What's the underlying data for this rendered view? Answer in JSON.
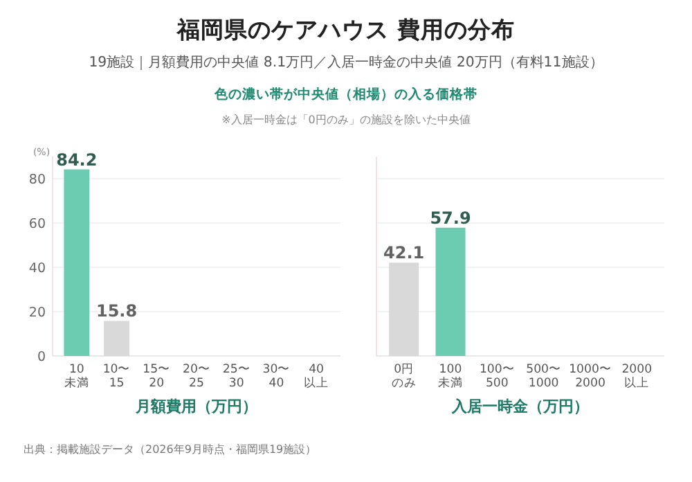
{
  "chart_data": [
    {
      "type": "bar",
      "title": "福岡県のケアハウス 費用の分布",
      "subtitle": "19施設｜月額費用の中央値 8.1万円／入居一時金の中央値 20万円（有料11施設）",
      "annotations": [
        "色の濃い帯が中央値（相場）の入る価格帯",
        "※入居一時金は「0円のみ」の施設を除いた中央値",
        "出典：掲載施設データ（2026年9月時点・福岡県19施設）"
      ],
      "ylabel": "(%)",
      "xlabel": "月額費用（万円）",
      "categories": [
        "10\n未満",
        "10〜\n15",
        "15〜\n20",
        "20〜\n25",
        "25〜\n30",
        "30〜\n40",
        "40\n以上"
      ],
      "values": [
        84.2,
        15.8,
        0,
        0,
        0,
        0,
        0
      ],
      "colors": [
        "#6cccb2",
        "#d9d9d9",
        "#d9d9d9",
        "#d9d9d9",
        "#d9d9d9",
        "#d9d9d9",
        "#d9d9d9"
      ],
      "value_labels": [
        "84.2",
        "15.8",
        null,
        null,
        null,
        null,
        null
      ],
      "ylim": [
        0,
        90
      ],
      "yticks": [
        0,
        20,
        40,
        60,
        80
      ],
      "grid": "y"
    },
    {
      "type": "bar",
      "xlabel": "入居一時金（万円）",
      "categories": [
        "0円のみ",
        "100\n未満",
        "100〜\n500",
        "500〜\n1000",
        "1000〜\n2000",
        "2000\n以上"
      ],
      "values": [
        42.1,
        57.9,
        0,
        0,
        0,
        0
      ],
      "colors": [
        "#d9d9d9",
        "#6cccb2",
        "#d9d9d9",
        "#d9d9d9",
        "#d9d9d9",
        "#d9d9d9"
      ],
      "value_labels": [
        "42.1",
        "57.9",
        null,
        null,
        null,
        null
      ],
      "ylim": [
        0,
        90
      ],
      "yticks": [
        0,
        20,
        40,
        60,
        80
      ],
      "grid": "y",
      "tick_labels": "x"
    }
  ]
}
